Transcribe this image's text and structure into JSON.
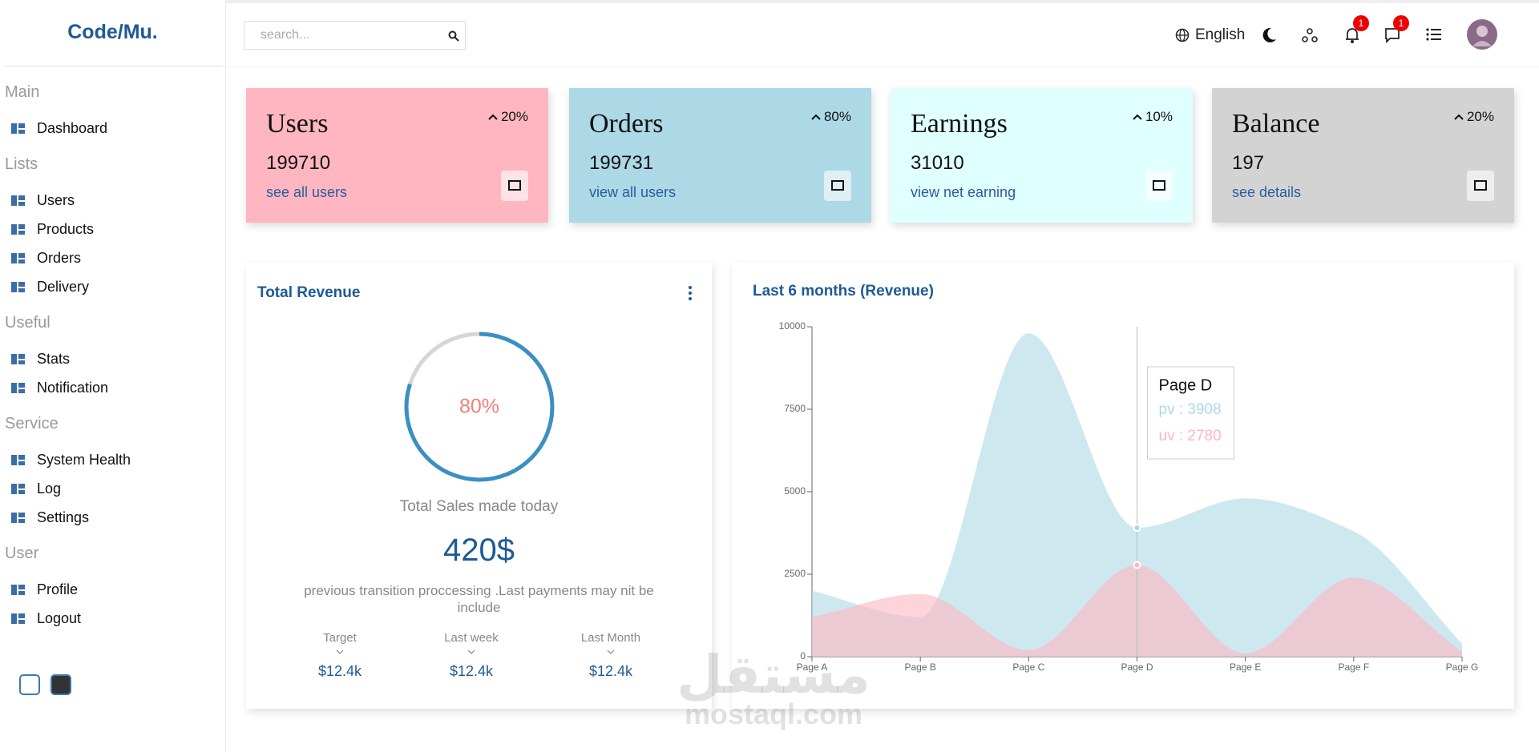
{
  "sidebar": {
    "logo": "Code/Mu.",
    "sections": [
      {
        "title": "Main",
        "items": [
          "Dashboard"
        ]
      },
      {
        "title": "Lists",
        "items": [
          "Users",
          "Products",
          "Orders",
          "Delivery"
        ]
      },
      {
        "title": "Useful",
        "items": [
          "Stats",
          "Notification"
        ]
      },
      {
        "title": "Service",
        "items": [
          "System Health",
          "Log",
          "Settings"
        ]
      },
      {
        "title": "User",
        "items": [
          "Profile",
          "Logout"
        ]
      }
    ]
  },
  "header": {
    "search_placeholder": "search...",
    "language": "English",
    "notifications_badge": 1,
    "messages_badge": 1
  },
  "widgets": [
    {
      "title": "Users",
      "value": 199710,
      "link": "see all users",
      "change": "20%",
      "color": "#ffb6c1"
    },
    {
      "title": "Orders",
      "value": 199731,
      "link": "view all users",
      "change": "80%",
      "color": "#add8e6"
    },
    {
      "title": "Earnings",
      "value": 31010,
      "link": "view net earning",
      "change": "10%",
      "color": "#e0ffff"
    },
    {
      "title": "Balance",
      "value": 197,
      "link": "see details",
      "change": "20%",
      "color": "#d3d3d3"
    }
  ],
  "featured": {
    "title": "Total Revenue",
    "progress": {
      "value": 80,
      "label": "80%"
    },
    "subtitle": "Total Sales made today",
    "amount": "420$",
    "description": "previous transition proccessing .Last payments may nit be include",
    "summary": [
      {
        "label": "Target",
        "value": "$12.4k"
      },
      {
        "label": "Last week",
        "value": "$12.4k"
      },
      {
        "label": "Last Month",
        "value": "$12.4k"
      }
    ]
  },
  "chart_data": {
    "type": "area",
    "title": "Last 6 months (Revenue)",
    "categories": [
      "Page A",
      "Page B",
      "Page C",
      "Page D",
      "Page E",
      "Page F",
      "Page G"
    ],
    "series": [
      {
        "name": "pv",
        "color": "#add8e6",
        "values": [
          2000,
          1200,
          9800,
          3908,
          4800,
          3800,
          400
        ]
      },
      {
        "name": "uv",
        "color": "#ffb6c1",
        "values": [
          1200,
          1900,
          200,
          2780,
          100,
          2400,
          150
        ]
      }
    ],
    "ylim": [
      0,
      10000
    ],
    "yticks": [
      0,
      2500,
      5000,
      7500,
      10000
    ],
    "grid": false,
    "tooltip": {
      "title": "Page D",
      "entries": [
        "pv : 3908",
        "uv : 2780"
      ]
    }
  },
  "watermark": {
    "arabic": "مستقل",
    "latin": "mostaql.com"
  }
}
